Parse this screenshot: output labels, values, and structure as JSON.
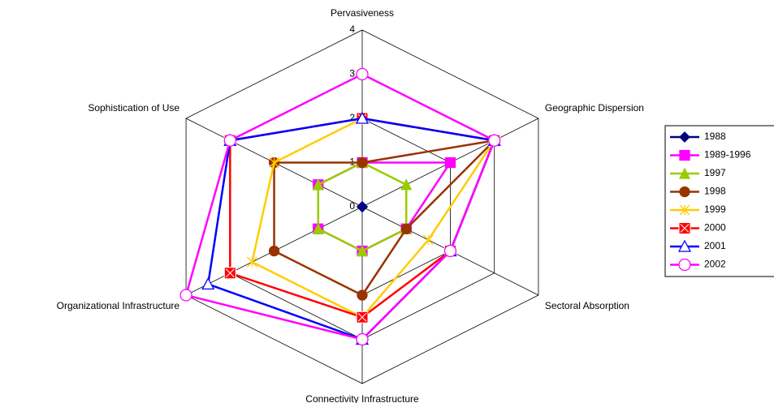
{
  "chart_data": {
    "type": "radar",
    "categories": [
      "Pervasiveness",
      "Geographic Dispersion",
      "Sectoral Absorption",
      "Connectivity Infrastructure",
      "Organizational Infrastructure",
      "Sophistication of Use"
    ],
    "ylim": [
      0,
      4
    ],
    "yticks": [
      0,
      1,
      2,
      3,
      4
    ],
    "grid": true,
    "legend": "right",
    "series": [
      {
        "name": "1988",
        "color": "#000080",
        "marker": "diamond",
        "values": [
          0,
          0,
          0,
          0,
          0,
          0
        ]
      },
      {
        "name": "1989-1996",
        "color": "#ff00ff",
        "marker": "square",
        "values": [
          1,
          2,
          1,
          1,
          1,
          1
        ]
      },
      {
        "name": "1997",
        "color": "#99cc00",
        "marker": "triangle",
        "values": [
          1,
          1,
          1,
          1,
          1,
          1
        ]
      },
      {
        "name": "1998",
        "color": "#993300",
        "marker": "circle",
        "values": [
          1,
          3,
          1,
          2,
          2,
          2
        ]
      },
      {
        "name": "1999",
        "color": "#ffcc00",
        "marker": "star",
        "values": [
          2,
          3,
          1.5,
          2.5,
          2.5,
          2
        ]
      },
      {
        "name": "2000",
        "color": "#ff0000",
        "marker": "xsquare",
        "values": [
          2,
          3,
          2,
          2.5,
          3,
          3
        ]
      },
      {
        "name": "2001",
        "color": "#0000ff",
        "marker": "open-triangle",
        "values": [
          2,
          3,
          2,
          3,
          3.5,
          3
        ]
      },
      {
        "name": "2002",
        "color": "#ff00ff",
        "marker": "open-circle",
        "values": [
          3,
          3,
          2,
          3,
          4,
          3
        ]
      }
    ]
  }
}
